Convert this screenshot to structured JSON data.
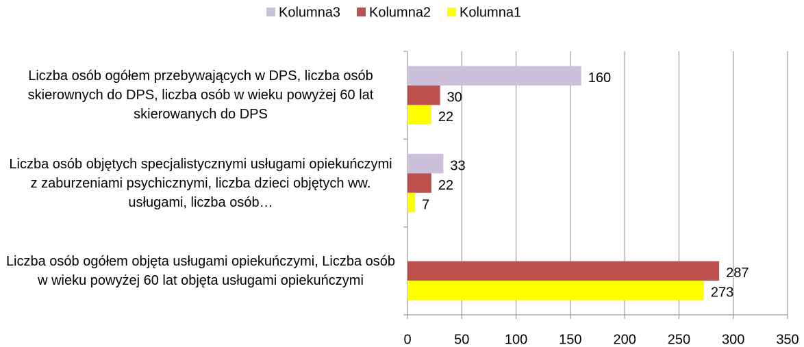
{
  "chart_data": {
    "type": "bar",
    "orientation": "horizontal",
    "categories": [
      "Liczba osób ogółem przebywających w DPS, liczba osób skierownych do DPS, liczba osób w wieku powyżej 60 lat skierowanych do DPS",
      "Liczba osób objętych specjalistycznymi usługami opiekuńczymi z zaburzeniami psychicznymi, liczba dzieci objętych ww. usługami, liczba osób…",
      "Liczba osób ogółem objęta usługami opiekuńczymi, Liczba osób w wieku powyżej 60 lat objęta usługami opiekuńczymi"
    ],
    "series": [
      {
        "name": "Kolumna3",
        "color": "#ccc0da",
        "values": [
          160,
          33,
          null
        ]
      },
      {
        "name": "Kolumna2",
        "color": "#c0504d",
        "values": [
          30,
          22,
          287
        ]
      },
      {
        "name": "Kolumna1",
        "color": "#ffff00",
        "values": [
          22,
          7,
          273
        ]
      }
    ],
    "xlim": [
      0,
      350
    ],
    "xticks": [
      0,
      50,
      100,
      150,
      200,
      250,
      300,
      350
    ],
    "grid": true,
    "legend": "top"
  }
}
